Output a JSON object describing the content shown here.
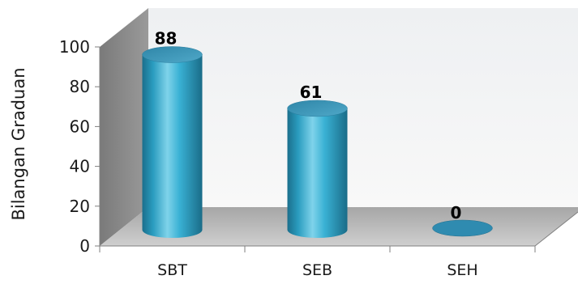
{
  "chart_data": {
    "type": "bar",
    "style": "3d-cylinder",
    "categories": [
      "SBT",
      "SEB",
      "SEH"
    ],
    "values": [
      88,
      61,
      0
    ],
    "title": "",
    "xlabel": "",
    "ylabel": "Bilangan Graduan",
    "ylim": [
      0,
      100
    ],
    "yticks": [
      0,
      20,
      40,
      60,
      80,
      100
    ],
    "grid": false,
    "legend": "none",
    "data_labels": true,
    "colors": {
      "bar": "#2fa7c9",
      "bar_dark": "#1b6f8c",
      "bar_light": "#7fd3ea",
      "bar_top": "#3f8fb0",
      "wall_dark": "#8a8a8a",
      "wall_light": "#f0f0f0",
      "floor": "#b8b8b8"
    }
  }
}
